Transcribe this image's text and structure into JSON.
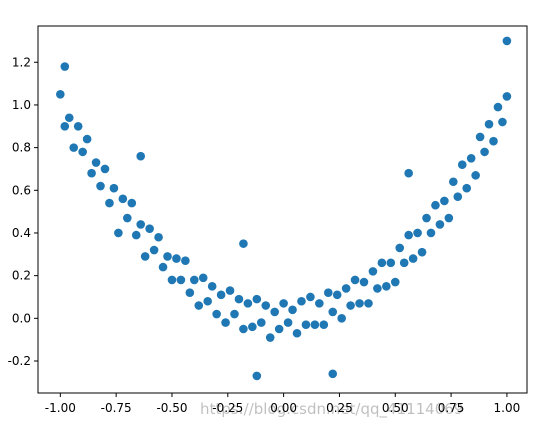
{
  "chart_data": {
    "type": "scatter",
    "color": "#1f77b4",
    "x": [
      -1.0,
      -0.98,
      -0.96,
      -0.94,
      -0.92,
      -0.9,
      -0.88,
      -0.86,
      -0.84,
      -0.82,
      -0.8,
      -0.78,
      -0.76,
      -0.74,
      -0.72,
      -0.7,
      -0.68,
      -0.66,
      -0.64,
      -0.62,
      -0.6,
      -0.58,
      -0.56,
      -0.54,
      -0.52,
      -0.5,
      -0.48,
      -0.46,
      -0.44,
      -0.42,
      -0.4,
      -0.38,
      -0.36,
      -0.34,
      -0.32,
      -0.3,
      -0.28,
      -0.26,
      -0.24,
      -0.22,
      -0.2,
      -0.18,
      -0.16,
      -0.14,
      -0.12,
      -0.1,
      -0.08,
      -0.06,
      -0.04,
      -0.02,
      0.0,
      0.02,
      0.04,
      0.06,
      0.08,
      0.1,
      0.12,
      0.14,
      0.16,
      0.18,
      0.2,
      0.22,
      0.24,
      0.26,
      0.28,
      0.3,
      0.32,
      0.34,
      0.36,
      0.38,
      0.4,
      0.42,
      0.44,
      0.46,
      0.48,
      0.5,
      0.52,
      0.54,
      0.56,
      0.58,
      0.6,
      0.62,
      0.64,
      0.66,
      0.68,
      0.7,
      0.72,
      0.74,
      0.76,
      0.78,
      0.8,
      0.82,
      0.84,
      0.86,
      0.88,
      0.9,
      0.92,
      0.94,
      0.96,
      0.98,
      1.0,
      -0.98,
      1.0,
      -0.64,
      0.56,
      -0.12,
      0.22,
      -0.18
    ],
    "values": [
      1.05,
      0.9,
      0.94,
      0.8,
      0.9,
      0.78,
      0.84,
      0.68,
      0.73,
      0.62,
      0.7,
      0.54,
      0.61,
      0.4,
      0.56,
      0.47,
      0.54,
      0.39,
      0.44,
      0.29,
      0.42,
      0.32,
      0.38,
      0.24,
      0.29,
      0.18,
      0.28,
      0.18,
      0.27,
      0.12,
      0.18,
      0.06,
      0.19,
      0.08,
      0.15,
      0.02,
      0.11,
      -0.02,
      0.13,
      0.02,
      0.09,
      -0.05,
      0.07,
      -0.04,
      0.09,
      -0.02,
      0.06,
      -0.09,
      0.03,
      -0.05,
      0.07,
      -0.02,
      0.04,
      -0.07,
      0.08,
      -0.03,
      0.1,
      -0.03,
      0.07,
      -0.03,
      0.12,
      0.03,
      0.11,
      0.0,
      0.14,
      0.06,
      0.18,
      0.07,
      0.17,
      0.07,
      0.22,
      0.14,
      0.26,
      0.15,
      0.26,
      0.17,
      0.33,
      0.26,
      0.39,
      0.28,
      0.4,
      0.31,
      0.47,
      0.4,
      0.53,
      0.44,
      0.55,
      0.47,
      0.64,
      0.57,
      0.72,
      0.61,
      0.75,
      0.67,
      0.85,
      0.78,
      0.91,
      0.83,
      0.99,
      0.92,
      1.04,
      1.18,
      1.3,
      0.76,
      0.68,
      -0.27,
      -0.26,
      0.35
    ],
    "xlim": [
      -1.1,
      1.09
    ],
    "ylim": [
      -0.35,
      1.37
    ],
    "xticks": [
      {
        "value": -1.0,
        "label": "-1.00"
      },
      {
        "value": -0.75,
        "label": "-0.75"
      },
      {
        "value": -0.5,
        "label": "-0.50"
      },
      {
        "value": -0.25,
        "label": "-0.25"
      },
      {
        "value": 0,
        "label": "0.00"
      },
      {
        "value": 0.25,
        "label": "0.25"
      },
      {
        "value": 0.5,
        "label": "0.50"
      },
      {
        "value": 0.75,
        "label": "0.75"
      },
      {
        "value": 1.0,
        "label": "1.00"
      }
    ],
    "yticks": [
      -0.2,
      {
        "value": 0,
        "label": "0.0"
      },
      0.2,
      0.4,
      0.6,
      0.8,
      {
        "value": 1.0,
        "label": "1.0"
      },
      1.2
    ],
    "watermark": "https://blog.csdn.net/qq_41114069"
  }
}
